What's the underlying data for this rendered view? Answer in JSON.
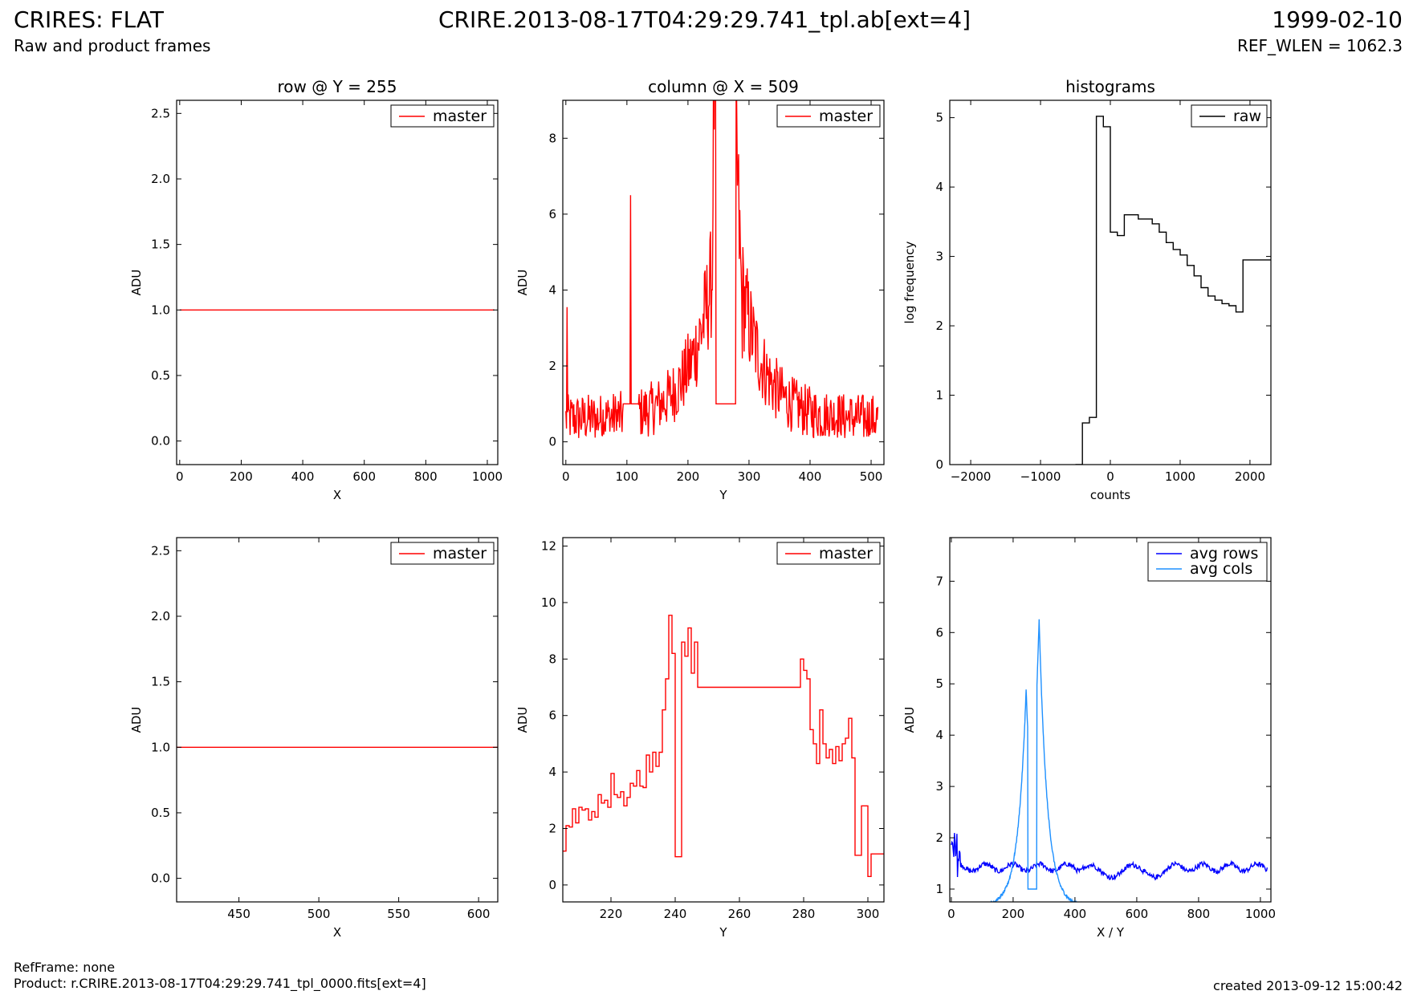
{
  "header": {
    "title": "CRIRES: FLAT",
    "subtitle": "Raw and product frames",
    "file": "CRIRE.2013-08-17T04:29:29.741_tpl.ab[ext=4]",
    "date": "1999-02-10",
    "ref_wlen": "REF_WLEN = 1062.3"
  },
  "footer": {
    "ref_frame": "RefFrame: none",
    "product": "Product: r.CRIRE.2013-08-17T04:29:29.741_tpl_0000.fits[ext=4]",
    "created": "created 2013-09-12 15:00:42"
  },
  "colors": {
    "master": "#ff0000",
    "raw": "#000000",
    "avg_rows": "#0000ff",
    "avg_cols": "#1e90ff"
  },
  "chart_data": [
    {
      "id": "row-full",
      "type": "line",
      "title": "row @ Y = 255",
      "xlabel": "X",
      "ylabel": "ADU",
      "xlim": [
        -10,
        1034
      ],
      "ylim": [
        -0.18,
        2.6
      ],
      "xticks": [
        0,
        200,
        400,
        600,
        800,
        1000
      ],
      "yticks": [
        0.0,
        0.5,
        1.0,
        1.5,
        2.0,
        2.5
      ],
      "yfmt": 1,
      "series": [
        {
          "name": "master",
          "color": "#ff0000",
          "x": [
            0,
            1023
          ],
          "y": [
            1.0,
            1.0
          ]
        }
      ]
    },
    {
      "id": "col-full",
      "type": "line",
      "title": "column @ X = 509",
      "xlabel": "Y",
      "ylabel": "ADU",
      "xlim": [
        -5,
        521
      ],
      "ylim": [
        -0.6,
        9.0
      ],
      "xticks": [
        0,
        100,
        200,
        300,
        400,
        500
      ],
      "yticks": [
        0,
        2,
        4,
        6,
        8
      ],
      "yfmt": 0,
      "series": [
        {
          "name": "master",
          "color": "#ff0000",
          "x": [],
          "y": []
        }
      ]
    },
    {
      "id": "hist",
      "type": "line",
      "title": "histograms",
      "xlabel": "counts",
      "ylabel": "log frequency",
      "xlim": [
        -2300,
        2300
      ],
      "ylim": [
        0,
        5.25
      ],
      "xticks": [
        -2000,
        -1000,
        0,
        1000,
        2000
      ],
      "yticks": [
        0,
        1,
        2,
        3,
        4,
        5
      ],
      "yfmt": 0,
      "series": [
        {
          "name": "raw",
          "color": "#000000",
          "step": true,
          "x": [
            -500,
            -400,
            -300,
            -200,
            -100,
            0,
            100,
            200,
            300,
            400,
            500,
            600,
            700,
            800,
            900,
            1000,
            1100,
            1200,
            1300,
            1400,
            1500,
            1600,
            1700,
            1800,
            1900,
            2000,
            2100,
            2200
          ],
          "y": [
            0,
            0.6,
            0.68,
            5.02,
            4.87,
            3.35,
            3.3,
            3.6,
            3.6,
            3.54,
            3.54,
            3.47,
            3.35,
            3.2,
            3.1,
            3.02,
            2.87,
            2.72,
            2.55,
            2.43,
            2.37,
            2.32,
            2.29,
            2.2,
            2.95,
            2.95,
            2.95,
            2.95
          ]
        }
      ]
    },
    {
      "id": "row-zoom",
      "type": "line",
      "title": "",
      "xlabel": "X",
      "ylabel": "ADU",
      "xlim": [
        411,
        612
      ],
      "ylim": [
        -0.18,
        2.6
      ],
      "xticks": [
        450,
        500,
        550,
        600
      ],
      "yticks": [
        0.0,
        0.5,
        1.0,
        1.5,
        2.0,
        2.5
      ],
      "yfmt": 1,
      "series": [
        {
          "name": "master",
          "color": "#ff0000",
          "x": [
            411,
            612
          ],
          "y": [
            1.0,
            1.0
          ]
        }
      ]
    },
    {
      "id": "col-zoom",
      "type": "line",
      "title": "",
      "xlabel": "Y",
      "ylabel": "ADU",
      "xlim": [
        205,
        305
      ],
      "ylim": [
        -0.6,
        12.3
      ],
      "xticks": [
        220,
        240,
        260,
        280,
        300
      ],
      "yticks": [
        0,
        2,
        4,
        6,
        8,
        10,
        12
      ],
      "yfmt": 0,
      "series": [
        {
          "name": "master",
          "color": "#ff0000",
          "step": true,
          "x": [
            205,
            206,
            207,
            208,
            209,
            210,
            211,
            212,
            213,
            214,
            215,
            216,
            217,
            218,
            219,
            220,
            221,
            222,
            223,
            224,
            225,
            226,
            227,
            228,
            229,
            230,
            231,
            232,
            233,
            234,
            235,
            236,
            237,
            238,
            239,
            240,
            241,
            242,
            243,
            244,
            245,
            246,
            247,
            279,
            280,
            281,
            282,
            283,
            284,
            285,
            286,
            287,
            288,
            289,
            290,
            291,
            292,
            293,
            294,
            295,
            296,
            297,
            298,
            299,
            300,
            301,
            302,
            303,
            304,
            305
          ],
          "y": [
            1.2,
            2.1,
            2.05,
            2.7,
            2.2,
            2.75,
            2.65,
            2.7,
            2.3,
            2.6,
            2.4,
            3.2,
            2.9,
            3.0,
            2.75,
            3.95,
            3.2,
            3.1,
            3.3,
            2.8,
            3.1,
            3.6,
            3.5,
            4.05,
            3.5,
            3.45,
            4.6,
            4.0,
            4.7,
            4.2,
            4.7,
            6.2,
            7.3,
            9.55,
            8.2,
            1.0,
            1.0,
            8.6,
            8.1,
            9.1,
            7.5,
            8.6,
            7.0,
            8.0,
            7.6,
            7.3,
            5.5,
            5.0,
            4.3,
            6.2,
            5.0,
            4.5,
            4.8,
            4.3,
            4.9,
            4.4,
            5.0,
            5.2,
            5.9,
            4.5,
            1.05,
            1.05,
            2.8,
            2.8,
            0.3,
            1.1,
            1.1,
            1.1,
            1.1,
            1.1
          ]
        }
      ]
    },
    {
      "id": "avg",
      "type": "line",
      "title": "",
      "xlabel": "X / Y",
      "ylabel": "ADU",
      "xlim": [
        -5,
        1034
      ],
      "ylim": [
        0.75,
        7.85
      ],
      "xticks": [
        0,
        200,
        400,
        600,
        800,
        1000
      ],
      "yticks": [
        1,
        2,
        3,
        4,
        5,
        6,
        7
      ],
      "yfmt": 0,
      "series": [
        {
          "name": "avg rows",
          "color": "#0000ff",
          "x": [],
          "y": []
        },
        {
          "name": "avg cols",
          "color": "#1e90ff",
          "x": [],
          "y": []
        }
      ]
    }
  ]
}
